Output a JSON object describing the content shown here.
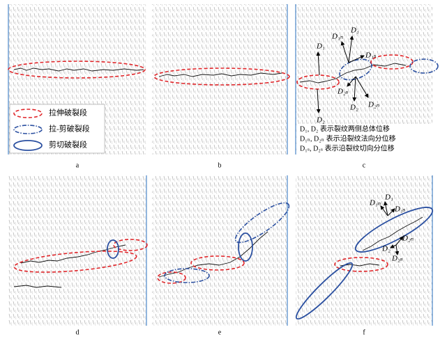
{
  "panels": [
    {
      "label": "a"
    },
    {
      "label": "b"
    },
    {
      "label": "c"
    },
    {
      "label": "d"
    },
    {
      "label": "e"
    },
    {
      "label": "f"
    }
  ],
  "legend": {
    "items": [
      "拉伸破裂段",
      "拉-剪破裂段",
      "剪切破裂段"
    ]
  },
  "panel_c": {
    "annotations": [
      "D₁",
      "D₁ₙ",
      "D₁",
      "D₁ₛ",
      "D₂ₛ",
      "D₂",
      "D₂ₙ",
      "D₂"
    ],
    "notes": [
      "D₁, D₂ 表示裂纹两侧总体位移",
      "D₁ₙ, D₂ₙ 表示沿裂纹法向分位移",
      "D₁ₛ, D₂ₛ 表示沿裂纹切向分位移"
    ]
  },
  "panel_f": {
    "annotations": [
      "D₁",
      "D₁ₙ",
      "D₁ₛ",
      "D₂ₙ",
      "D₂",
      "D₂ₛ"
    ]
  }
}
